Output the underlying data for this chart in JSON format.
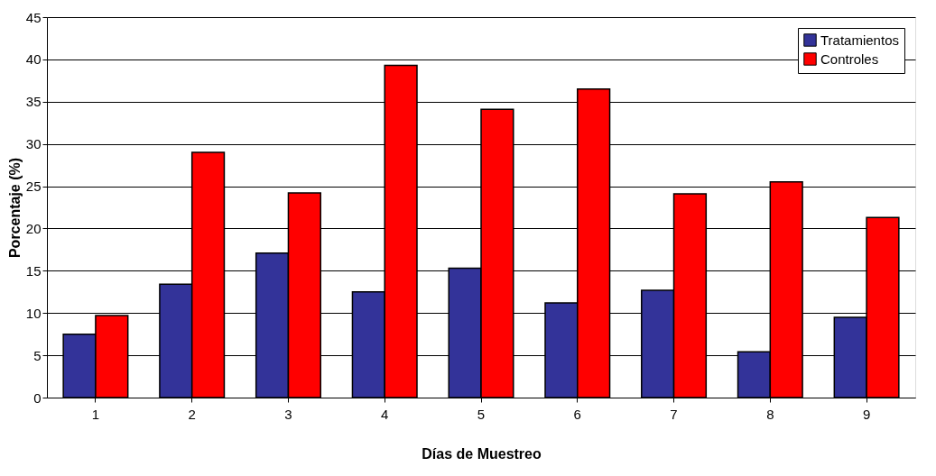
{
  "chart_data": {
    "type": "bar",
    "xlabel": "Días de Muestreo",
    "ylabel": "Porcentaje (%)",
    "categories": [
      "1",
      "2",
      "3",
      "4",
      "5",
      "6",
      "7",
      "8",
      "9"
    ],
    "series": [
      {
        "name": "Tratamientos",
        "color": "#333399",
        "values": [
          7.5,
          13.4,
          17.1,
          12.5,
          15.3,
          11.2,
          12.7,
          5.4,
          9.5
        ]
      },
      {
        "name": "Controles",
        "color": "#ff0000",
        "values": [
          9.7,
          29.0,
          24.2,
          39.3,
          34.1,
          36.5,
          24.1,
          25.5,
          21.3
        ]
      }
    ],
    "ylim": [
      0,
      45
    ],
    "yticks": [
      0,
      5,
      10,
      15,
      20,
      25,
      30,
      35,
      40,
      45
    ],
    "grid": "y",
    "legend": "top right"
  }
}
